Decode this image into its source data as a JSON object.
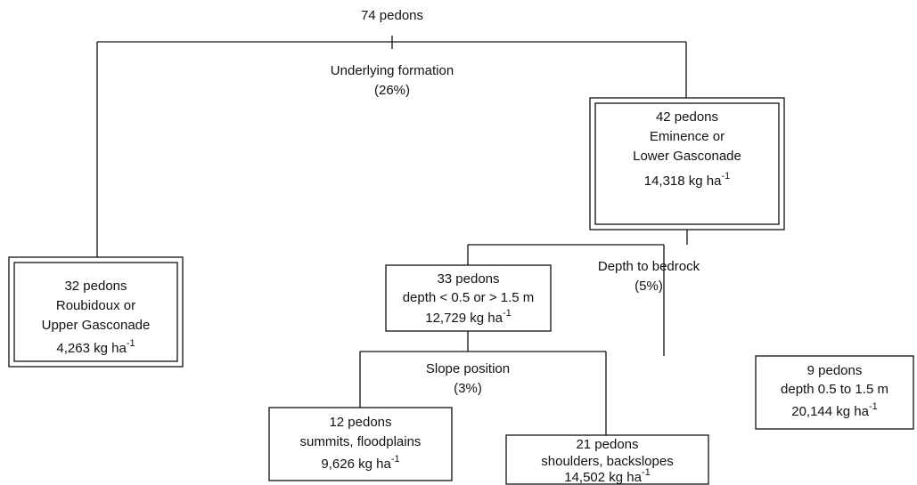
{
  "root": {
    "count": "74 pedons"
  },
  "splits": [
    {
      "label": "Underlying formation",
      "importance": "(26%)"
    },
    {
      "label": "Depth to bedrock",
      "importance": "(5%)"
    },
    {
      "label": "Slope position",
      "importance": "(3%)"
    }
  ],
  "nodes": [
    {
      "count": "42 pedons",
      "condition": [
        "Eminence or",
        "Lower Gasconade"
      ],
      "yield": "14,318 kg ha",
      "exponent": "-1"
    },
    {
      "count": "32 pedons",
      "condition": [
        "Roubidoux or",
        "Upper Gasconade"
      ],
      "yield": "4,263 kg ha",
      "exponent": "-1"
    },
    {
      "count": "33 pedons",
      "condition": [
        "depth < 0.5  or > 1.5 m"
      ],
      "yield": "12,729 kg ha",
      "exponent": "-1"
    },
    {
      "count": "9 pedons",
      "condition": [
        "depth  0.5 to 1.5 m"
      ],
      "yield": "20,144 kg ha",
      "exponent": "-1"
    },
    {
      "count": "12 pedons",
      "condition": [
        "summits, floodplains"
      ],
      "yield": "9,626 kg ha",
      "exponent": "-1"
    },
    {
      "count": "21 pedons",
      "condition": [
        "shoulders, backslopes"
      ],
      "yield": "14,502 kg ha",
      "exponent": "-1"
    }
  ]
}
